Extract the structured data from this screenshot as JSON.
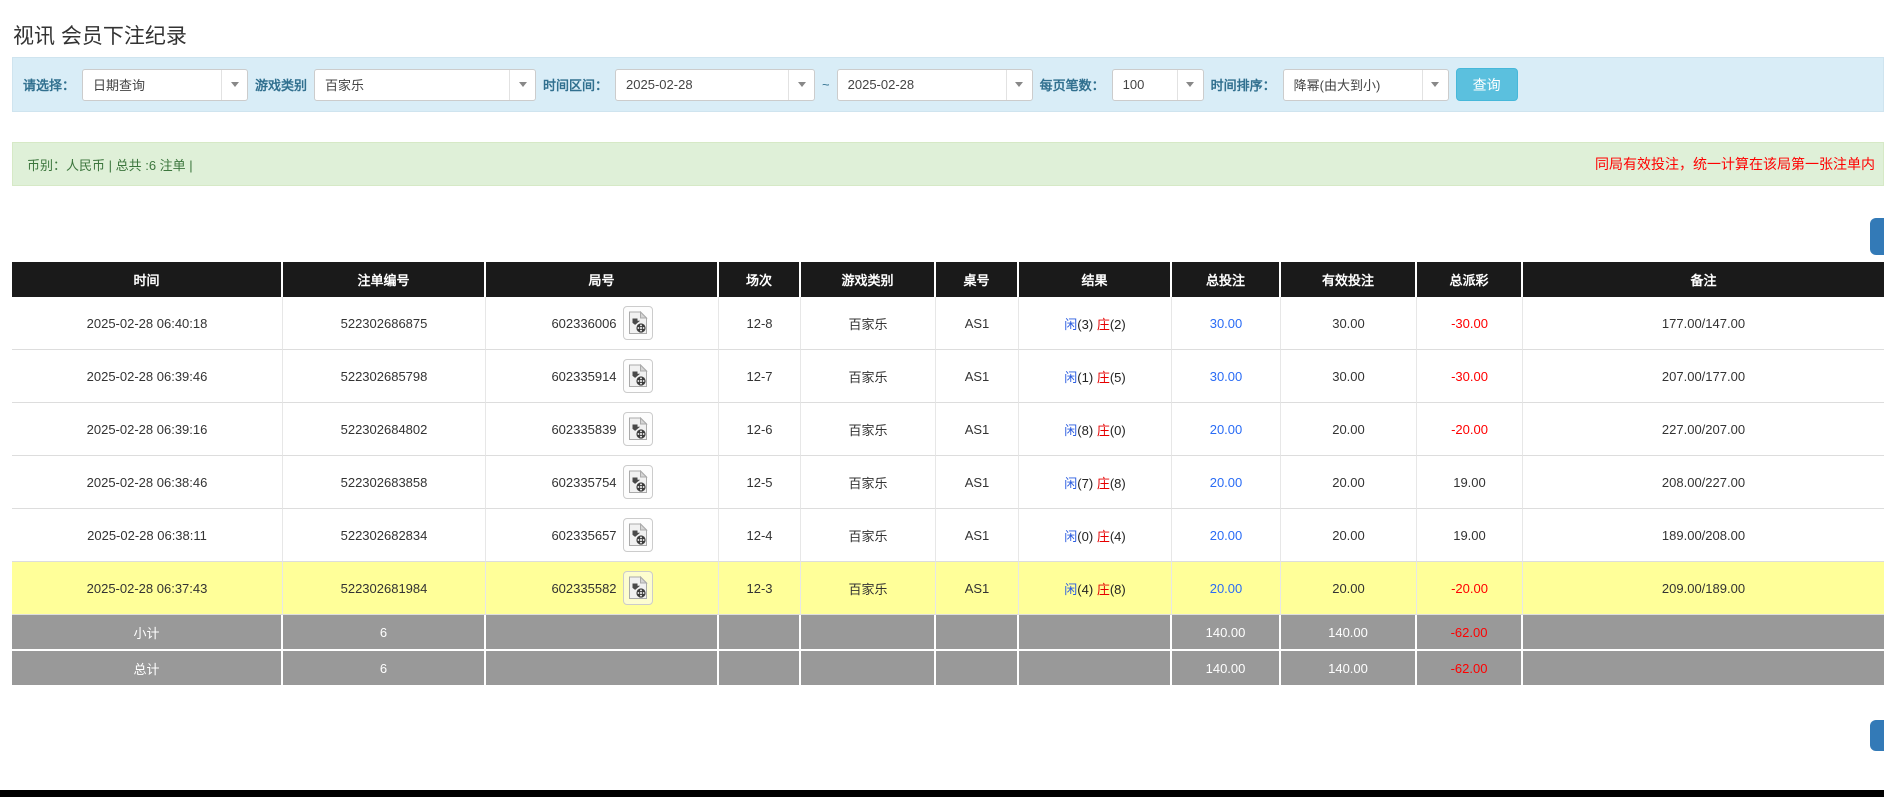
{
  "page": {
    "title": "视讯 会员下注纪录"
  },
  "filters": {
    "select_label": "请选择：",
    "select_value": "日期查询",
    "game_label": "游戏类别",
    "game_value": "百家乐",
    "range_label": "时间区间：",
    "date_from": "2025-02-28",
    "range_sep": "~",
    "date_to": "2025-02-28",
    "page_size_label": "每页笔数：",
    "page_size_value": "100",
    "sort_label": "时间排序：",
    "sort_value": "降幂(由大到小)",
    "search_button": "查询"
  },
  "summary": {
    "left": "币别：人民币 | 总共 :6 注单 |",
    "right_note": "同局有效投注，统一计算在该局第一张注单内"
  },
  "table": {
    "columns": [
      "时间",
      "注单编号",
      "局号",
      "场次",
      "游戏类别",
      "桌号",
      "结果",
      "总投注",
      "有效投注",
      "总派彩",
      "备注"
    ],
    "rows": [
      {
        "time": "2025-02-28 06:40:18",
        "bet_id": "522302686875",
        "round_id": "602336006",
        "session": "12-8",
        "game": "百家乐",
        "table_no": "AS1",
        "result": {
          "player": "闲",
          "player_n": "(3)",
          "banker": "庄",
          "banker_n": "(2)"
        },
        "total_bet": "30.00",
        "valid_bet": "30.00",
        "payout": "-30.00",
        "remark": "177.00/147.00",
        "highlight": false
      },
      {
        "time": "2025-02-28 06:39:46",
        "bet_id": "522302685798",
        "round_id": "602335914",
        "session": "12-7",
        "game": "百家乐",
        "table_no": "AS1",
        "result": {
          "player": "闲",
          "player_n": "(1)",
          "banker": "庄",
          "banker_n": "(5)"
        },
        "total_bet": "30.00",
        "valid_bet": "30.00",
        "payout": "-30.00",
        "remark": "207.00/177.00",
        "highlight": false
      },
      {
        "time": "2025-02-28 06:39:16",
        "bet_id": "522302684802",
        "round_id": "602335839",
        "session": "12-6",
        "game": "百家乐",
        "table_no": "AS1",
        "result": {
          "player": "闲",
          "player_n": "(8)",
          "banker": "庄",
          "banker_n": "(0)"
        },
        "total_bet": "20.00",
        "valid_bet": "20.00",
        "payout": "-20.00",
        "remark": "227.00/207.00",
        "highlight": false
      },
      {
        "time": "2025-02-28 06:38:46",
        "bet_id": "522302683858",
        "round_id": "602335754",
        "session": "12-5",
        "game": "百家乐",
        "table_no": "AS1",
        "result": {
          "player": "闲",
          "player_n": "(7)",
          "banker": "庄",
          "banker_n": "(8)"
        },
        "total_bet": "20.00",
        "valid_bet": "20.00",
        "payout": "19.00",
        "remark": "208.00/227.00",
        "highlight": false
      },
      {
        "time": "2025-02-28 06:38:11",
        "bet_id": "522302682834",
        "round_id": "602335657",
        "session": "12-4",
        "game": "百家乐",
        "table_no": "AS1",
        "result": {
          "player": "闲",
          "player_n": "(0)",
          "banker": "庄",
          "banker_n": "(4)"
        },
        "total_bet": "20.00",
        "valid_bet": "20.00",
        "payout": "19.00",
        "remark": "189.00/208.00",
        "highlight": false
      },
      {
        "time": "2025-02-28 06:37:43",
        "bet_id": "522302681984",
        "round_id": "602335582",
        "session": "12-3",
        "game": "百家乐",
        "table_no": "AS1",
        "result": {
          "player": "闲",
          "player_n": "(4)",
          "banker": "庄",
          "banker_n": "(8)"
        },
        "total_bet": "20.00",
        "valid_bet": "20.00",
        "payout": "-20.00",
        "remark": "209.00/189.00",
        "highlight": true
      }
    ],
    "footer_rows": [
      {
        "label": "小计",
        "count": "6",
        "total_bet": "140.00",
        "valid_bet": "140.00",
        "payout": "-62.00"
      },
      {
        "label": "总计",
        "count": "6",
        "total_bet": "140.00",
        "valid_bet": "140.00",
        "payout": "-62.00"
      }
    ]
  },
  "colors": {
    "filter_bg": "#d9edf7",
    "summary_bg": "#dff0d8",
    "summary_text": "#3c763d",
    "note_red": "#ff0000",
    "header_bg": "#1a1a1a",
    "highlight_yellow": "#ffff99",
    "footer_gray": "#999999",
    "link_blue": "#2a6cf5",
    "player_blue": "#2a5ce0",
    "banker_red": "#e60000",
    "search_btn": "#5bc0de",
    "side_btn": "#337ab7"
  }
}
